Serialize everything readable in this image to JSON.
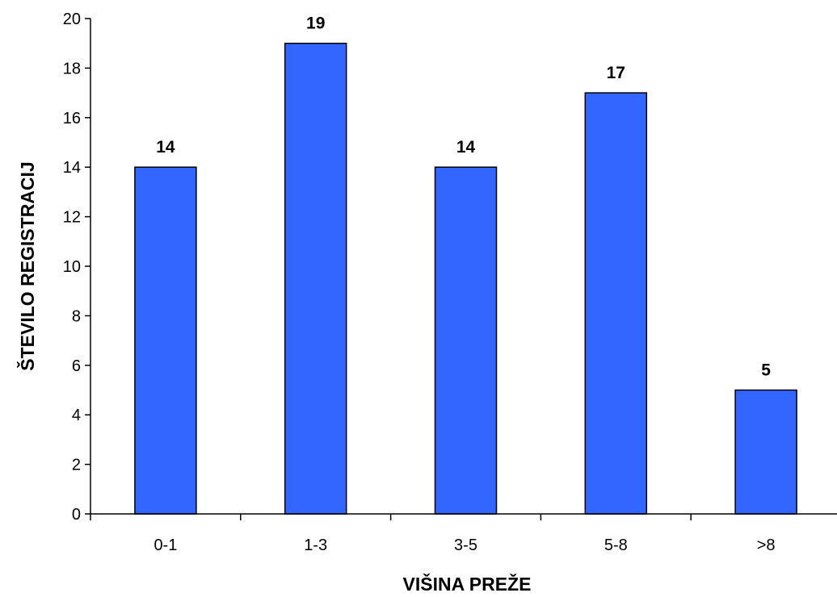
{
  "chart_data": {
    "type": "bar",
    "categories": [
      "0-1",
      "1-3",
      "3-5",
      "5-8",
      ">8"
    ],
    "values": [
      14,
      19,
      14,
      17,
      5
    ],
    "data_labels": [
      "14",
      "19",
      "14",
      "17",
      "5"
    ],
    "title": "",
    "xlabel": "VIŠINA PREŽE",
    "ylabel": "ŠTEVILO REGISTRACIJ",
    "ylim": [
      0,
      20
    ],
    "yticks": [
      0,
      2,
      4,
      6,
      8,
      10,
      12,
      14,
      16,
      18,
      20
    ],
    "bar_color": "#3366ff",
    "grid": false,
    "legend": "none"
  }
}
